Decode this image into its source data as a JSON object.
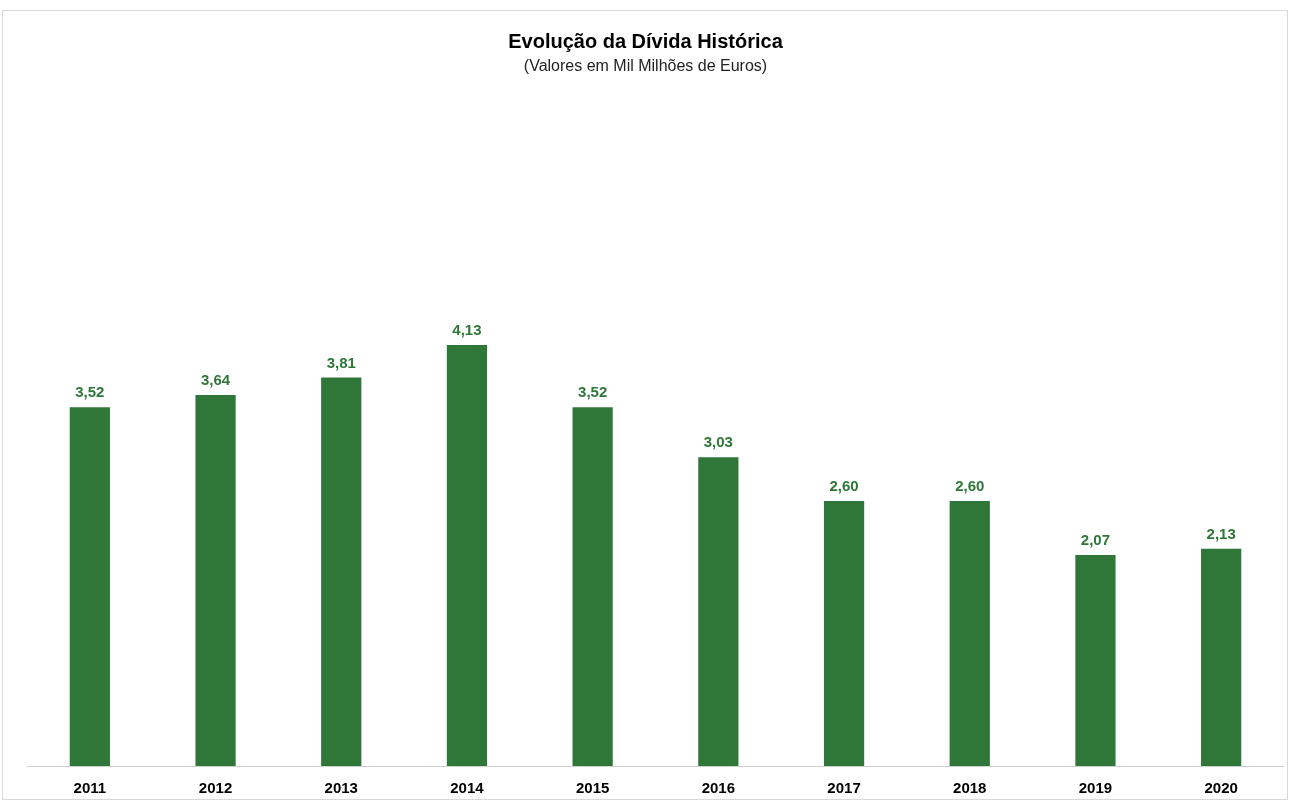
{
  "chart_data": {
    "type": "bar",
    "title": "Evolução da Dívida Histórica",
    "subtitle": "(Valores em Mil Milhões de Euros)",
    "categories": [
      "2011",
      "2012",
      "2013",
      "2014",
      "2015",
      "2016",
      "2017",
      "2018",
      "2019",
      "2020"
    ],
    "values": [
      3.52,
      3.64,
      3.81,
      4.13,
      3.52,
      3.03,
      2.6,
      2.6,
      2.07,
      2.13
    ],
    "value_labels": [
      "3,52",
      "3,64",
      "3,81",
      "4,13",
      "3,52",
      "3,03",
      "2,60",
      "2,60",
      "2,07",
      "2,13"
    ],
    "color": "#2e7738"
  }
}
